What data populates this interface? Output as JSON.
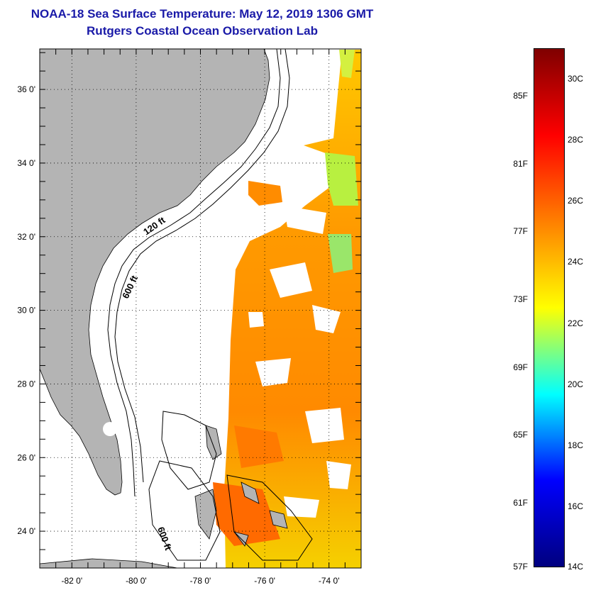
{
  "title": {
    "line1": "NOAA-18 Sea Surface Temperature:  May 12, 2019 1306 GMT",
    "line2": "Rutgers Coastal Ocean Observation Lab"
  },
  "map": {
    "lat_labels": [
      "36 0'",
      "34 0'",
      "32 0'",
      "30 0'",
      "28 0'",
      "26 0'",
      "24 0'"
    ],
    "lon_labels": [
      "-82 0'",
      "-80 0'",
      "-78 0'",
      "-76 0'",
      "-74 0'"
    ],
    "lat_values": [
      36,
      34,
      32,
      30,
      28,
      26,
      24
    ],
    "lon_values": [
      -82,
      -80,
      -78,
      -76,
      -74
    ],
    "lat_range": [
      23.0,
      37.1
    ],
    "lon_range": [
      -83.0,
      -73.0
    ],
    "contour_labels": {
      "c120": "120 ft",
      "c600a": "600 ft",
      "c600b": "600 ft"
    },
    "colors": {
      "land": "#b4b4b4",
      "cloud": "#ffffff",
      "contour": "#000000"
    }
  },
  "colorbar": {
    "f_labels": [
      "85F",
      "81F",
      "77F",
      "73F",
      "69F",
      "65F",
      "61F",
      "57F"
    ],
    "c_labels": [
      "30C",
      "28C",
      "26C",
      "24C",
      "22C",
      "20C",
      "18C",
      "16C",
      "14C"
    ],
    "min_c": 14,
    "max_c": 31,
    "colors": [
      "#00007f",
      "#0000ff",
      "#00ffff",
      "#ffff00",
      "#ff7f00",
      "#ff0000",
      "#7f0000"
    ]
  }
}
